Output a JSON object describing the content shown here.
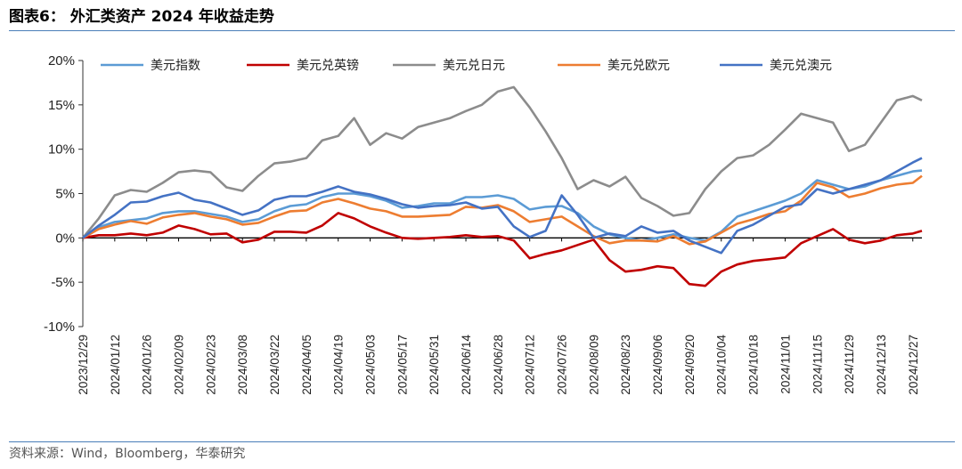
{
  "header": {
    "title": "图表6：  外汇类资产 2024 年收益走势"
  },
  "footer": {
    "source": "资料来源：Wind，Bloomberg，华泰研究"
  },
  "chart_data": {
    "type": "line",
    "y_unit": "%",
    "ylim": [
      -10,
      20
    ],
    "yticks": [
      -10,
      -5,
      0,
      5,
      10,
      15,
      20
    ],
    "ytick_labels": [
      "-10%",
      "-5%",
      "0%",
      "5%",
      "10%",
      "15%",
      "20%"
    ],
    "x_tick_labels": [
      "2023/12/29",
      "2024/01/12",
      "2024/01/26",
      "2024/02/09",
      "2024/02/23",
      "2024/03/08",
      "2024/03/22",
      "2024/04/05",
      "2024/04/19",
      "2024/05/03",
      "2024/05/17",
      "2024/05/31",
      "2024/06/14",
      "2024/06/28",
      "2024/07/12",
      "2024/07/26",
      "2024/08/09",
      "2024/08/23",
      "2024/09/06",
      "2024/09/20",
      "2024/10/04",
      "2024/10/18",
      "2024/11/01",
      "2024/11/15",
      "2024/11/29",
      "2024/12/13",
      "2024/12/27"
    ],
    "x": [
      "2023/12/29",
      "2024/01/05",
      "2024/01/12",
      "2024/01/19",
      "2024/01/26",
      "2024/02/02",
      "2024/02/09",
      "2024/02/16",
      "2024/02/23",
      "2024/03/01",
      "2024/03/08",
      "2024/03/15",
      "2024/03/22",
      "2024/03/29",
      "2024/04/05",
      "2024/04/12",
      "2024/04/19",
      "2024/04/26",
      "2024/05/03",
      "2024/05/10",
      "2024/05/17",
      "2024/05/24",
      "2024/05/31",
      "2024/06/07",
      "2024/06/14",
      "2024/06/21",
      "2024/06/28",
      "2024/07/05",
      "2024/07/12",
      "2024/07/19",
      "2024/07/26",
      "2024/08/02",
      "2024/08/09",
      "2024/08/16",
      "2024/08/23",
      "2024/08/30",
      "2024/09/06",
      "2024/09/13",
      "2024/09/20",
      "2024/09/27",
      "2024/10/04",
      "2024/10/11",
      "2024/10/18",
      "2024/10/25",
      "2024/11/01",
      "2024/11/08",
      "2024/11/15",
      "2024/11/22",
      "2024/11/29",
      "2024/12/06",
      "2024/12/13",
      "2024/12/20",
      "2024/12/27",
      "2024/12/31"
    ],
    "series": [
      {
        "name": "美元指数",
        "color": "#5b9bd5",
        "values": [
          0,
          1.2,
          1.8,
          2.0,
          2.2,
          2.8,
          3.0,
          3.0,
          2.7,
          2.4,
          1.8,
          2.1,
          3.0,
          3.6,
          3.8,
          4.6,
          5.0,
          5.0,
          4.7,
          4.2,
          3.4,
          3.6,
          3.9,
          3.9,
          4.6,
          4.6,
          4.8,
          4.4,
          3.2,
          3.5,
          3.6,
          2.8,
          1.3,
          0.4,
          0.0,
          -0.3,
          0.0,
          0.4,
          0.0,
          -0.3,
          0.7,
          2.4,
          3.0,
          3.6,
          4.2,
          5.0,
          6.5,
          6.0,
          5.5,
          5.8,
          6.5,
          7.0,
          7.5,
          7.6
        ]
      },
      {
        "name": "美元兑英镑",
        "color": "#c00000",
        "values": [
          0,
          0.3,
          0.3,
          0.5,
          0.3,
          0.6,
          1.4,
          1.0,
          0.4,
          0.5,
          -0.5,
          -0.2,
          0.7,
          0.7,
          0.6,
          1.4,
          2.8,
          2.2,
          1.3,
          0.6,
          0.0,
          -0.1,
          0.0,
          0.1,
          0.3,
          0.1,
          0.2,
          -0.3,
          -2.3,
          -1.8,
          -1.4,
          -0.8,
          -0.2,
          -2.5,
          -3.8,
          -3.6,
          -3.2,
          -3.4,
          -5.2,
          -5.4,
          -3.8,
          -3.0,
          -2.6,
          -2.4,
          -2.2,
          -0.6,
          0.2,
          1.0,
          -0.2,
          -0.6,
          -0.3,
          0.3,
          0.5,
          0.8
        ]
      },
      {
        "name": "美元兑日元",
        "color": "#8c8c8c",
        "values": [
          0,
          2.2,
          4.8,
          5.4,
          5.2,
          6.2,
          7.4,
          7.6,
          7.4,
          5.7,
          5.3,
          7.0,
          8.4,
          8.6,
          9.0,
          11.0,
          11.5,
          13.5,
          10.5,
          11.8,
          11.2,
          12.5,
          13.0,
          13.5,
          14.3,
          15.0,
          16.5,
          17.0,
          14.7,
          12.0,
          9.0,
          5.5,
          6.5,
          5.8,
          6.9,
          4.5,
          3.6,
          2.5,
          2.8,
          5.5,
          7.5,
          9.0,
          9.3,
          10.5,
          12.2,
          14.0,
          13.5,
          13.0,
          9.8,
          10.5,
          13.0,
          15.5,
          16.0,
          15.5
        ]
      },
      {
        "name": "美元兑欧元",
        "color": "#ed7d31",
        "values": [
          0,
          1.0,
          1.5,
          1.9,
          1.6,
          2.3,
          2.6,
          2.8,
          2.4,
          2.1,
          1.5,
          1.7,
          2.4,
          3.0,
          3.1,
          4.0,
          4.4,
          3.9,
          3.3,
          3.0,
          2.4,
          2.4,
          2.5,
          2.6,
          3.5,
          3.4,
          3.7,
          3.0,
          1.8,
          2.1,
          2.4,
          1.3,
          0.2,
          -0.6,
          -0.3,
          -0.3,
          -0.4,
          0.2,
          -0.7,
          -0.4,
          0.6,
          1.6,
          2.1,
          2.7,
          3.0,
          4.2,
          6.2,
          5.7,
          4.6,
          5.0,
          5.6,
          6.0,
          6.2,
          7.0
        ]
      },
      {
        "name": "美元兑澳元",
        "color": "#4472c4",
        "values": [
          0,
          1.4,
          2.6,
          4.0,
          4.1,
          4.7,
          5.1,
          4.3,
          4.0,
          3.3,
          2.6,
          3.1,
          4.3,
          4.7,
          4.7,
          5.2,
          5.8,
          5.2,
          4.9,
          4.4,
          3.8,
          3.4,
          3.6,
          3.7,
          4.0,
          3.3,
          3.5,
          1.3,
          0.1,
          0.8,
          4.8,
          2.6,
          0.0,
          0.5,
          0.2,
          1.3,
          0.6,
          0.8,
          -0.3,
          -1.0,
          -1.7,
          0.8,
          1.5,
          2.5,
          3.5,
          3.8,
          5.5,
          5.0,
          5.5,
          6.0,
          6.5,
          7.5,
          8.5,
          9.0
        ]
      }
    ],
    "legend_position": "top",
    "grid": false
  }
}
